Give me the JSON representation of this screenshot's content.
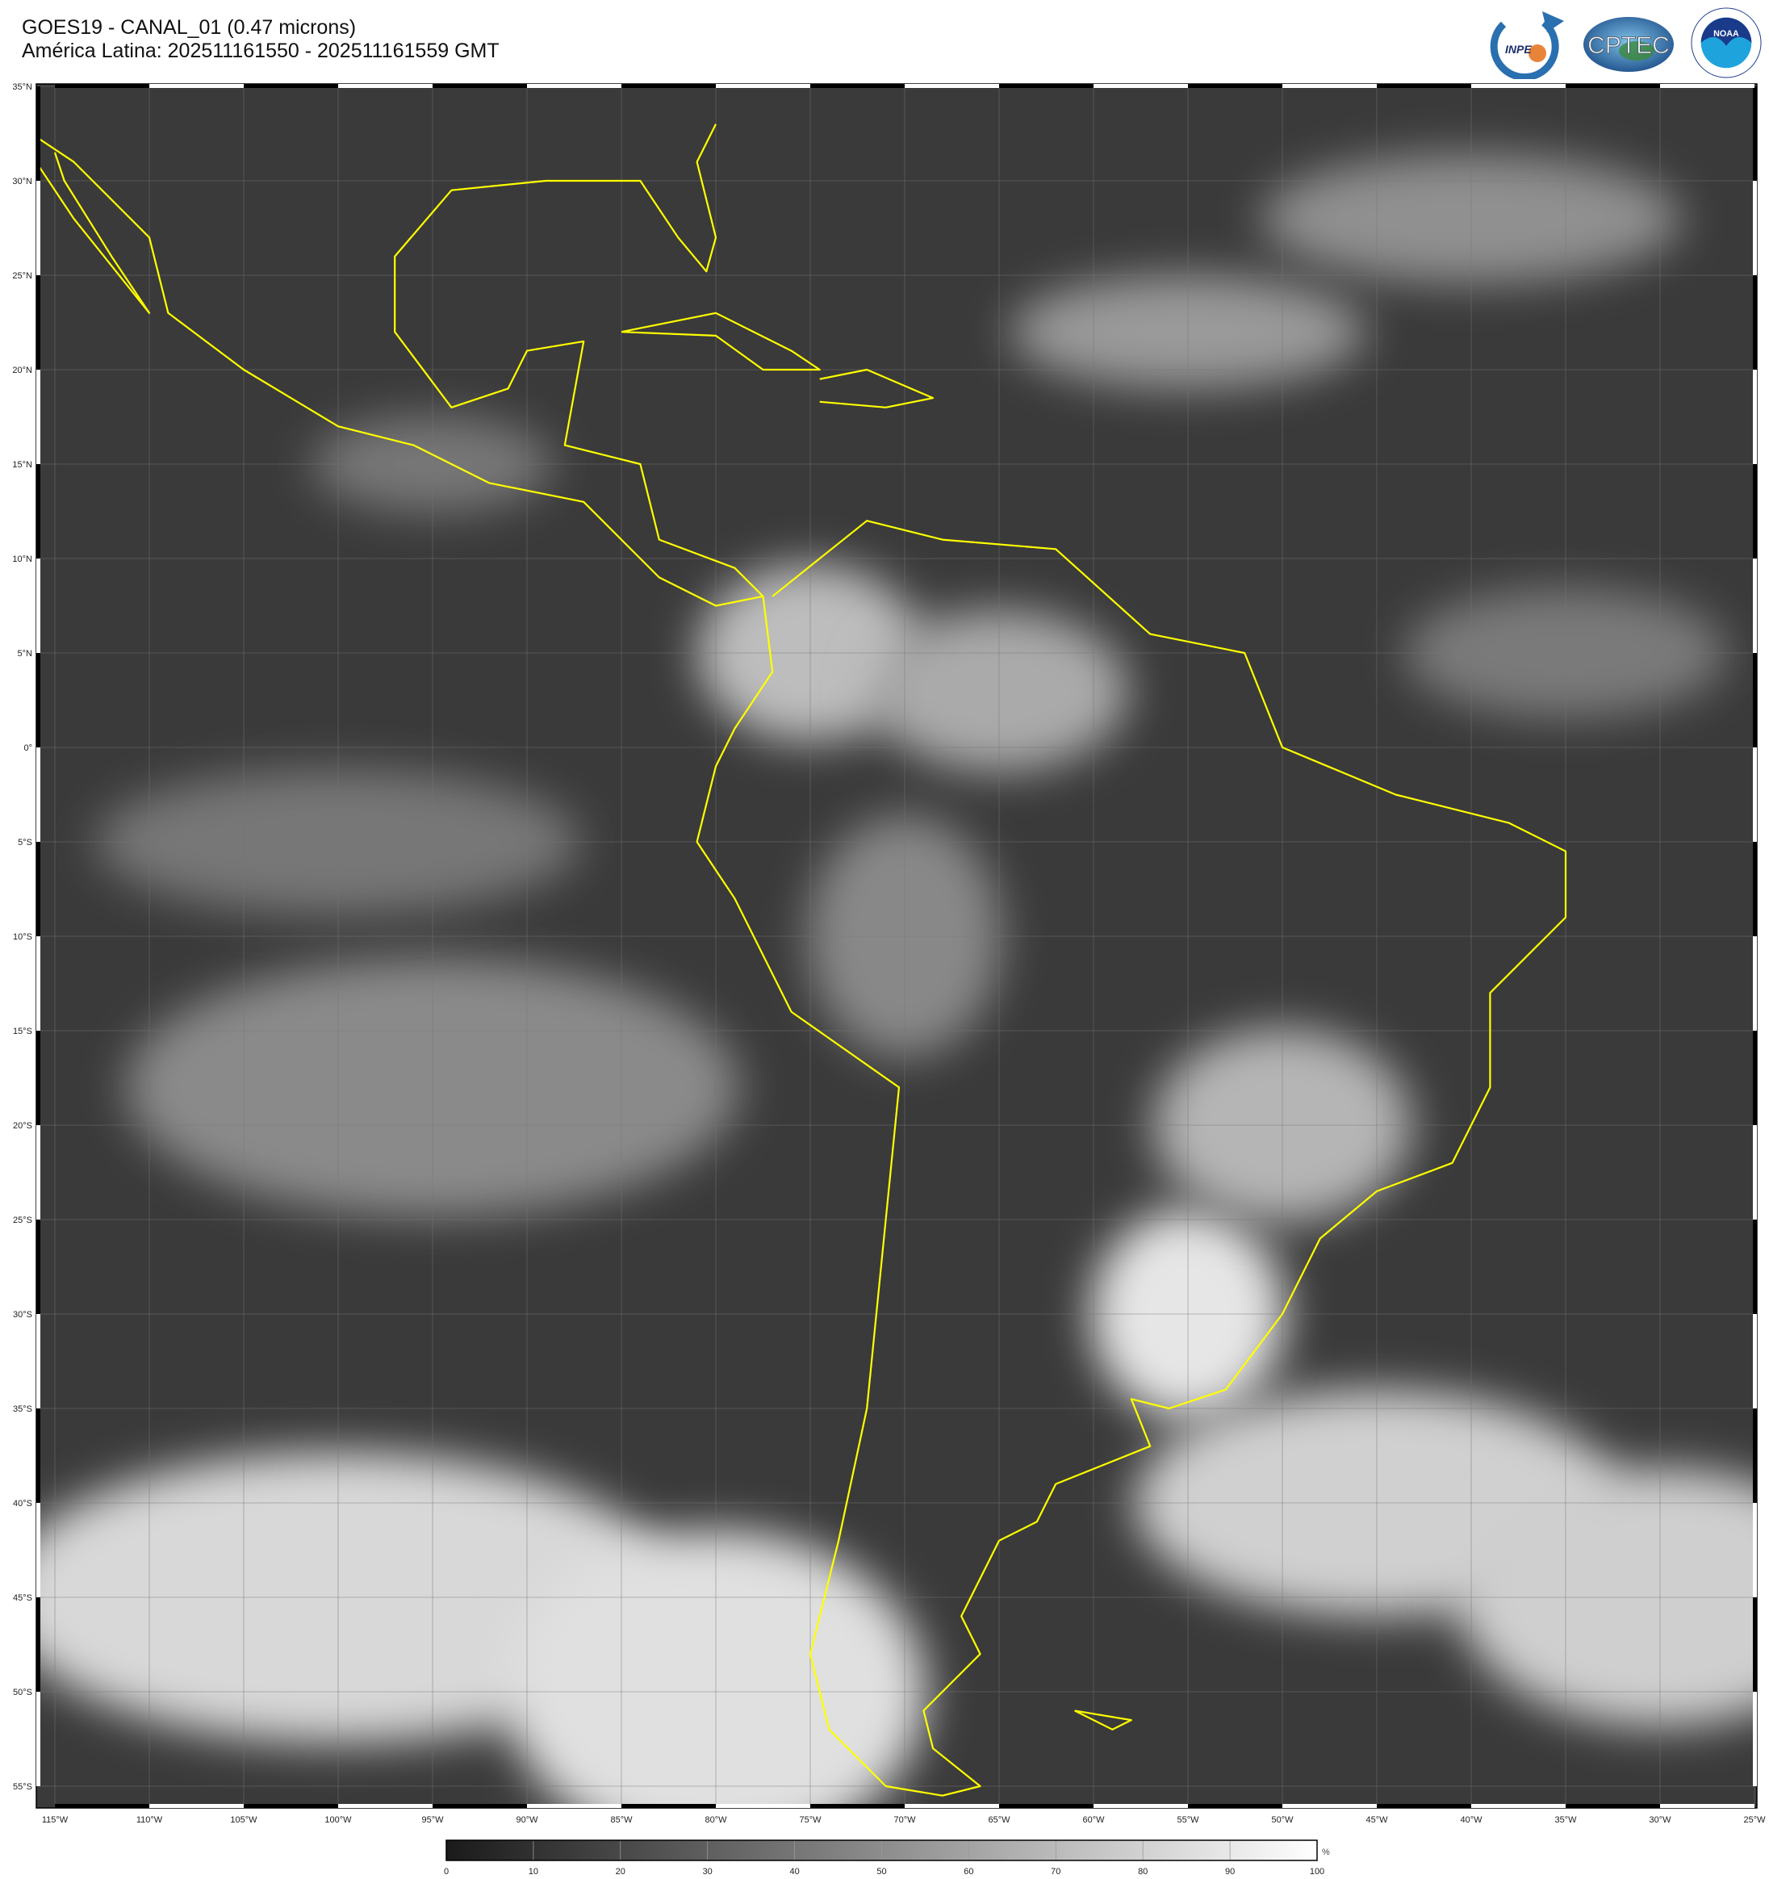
{
  "header": {
    "title": "GOES19 - CANAL_01 (0.47 microns)",
    "subtitle": "América Latina: 202511161550 - 202511161559 GMT"
  },
  "logos": [
    {
      "name": "INPE",
      "text": "INPE"
    },
    {
      "name": "CPTEC",
      "text": "CPTEC"
    },
    {
      "name": "NOAA",
      "text": "NOAA",
      "ring_text": "NATIONAL OCEANIC AND ATMOSPHERIC ADMINISTRATION · U.S. DEPARTMENT OF COMMERCE"
    }
  ],
  "map": {
    "lat_labels": [
      "35°N",
      "30°N",
      "25°N",
      "20°N",
      "15°N",
      "10°N",
      "5°N",
      "0°",
      "5°S",
      "10°S",
      "15°S",
      "20°S",
      "25°S",
      "30°S",
      "35°S",
      "40°S",
      "45°S",
      "50°S",
      "55°S"
    ],
    "lon_labels": [
      "115°W",
      "110°W",
      "105°W",
      "100°W",
      "95°W",
      "90°W",
      "85°W",
      "80°W",
      "75°W",
      "70°W",
      "65°W",
      "60°W",
      "55°W",
      "50°W",
      "45°W",
      "40°W",
      "35°W",
      "30°W",
      "25°W"
    ],
    "coastline_color": "#ffff00",
    "grid": true
  },
  "colorbar": {
    "unit": "%",
    "ticks": [
      "0",
      "10",
      "20",
      "30",
      "40",
      "50",
      "60",
      "70",
      "80",
      "90",
      "100"
    ],
    "range": [
      0,
      100
    ],
    "colors": [
      "#1a1a1a",
      "#ffffff"
    ]
  }
}
